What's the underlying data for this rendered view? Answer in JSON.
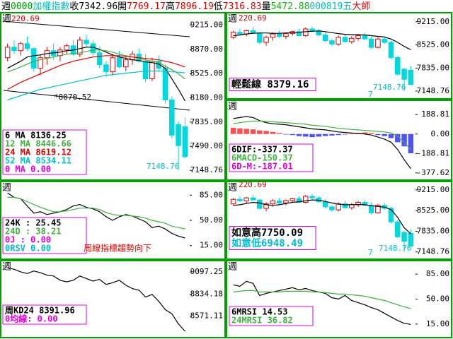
{
  "header": [
    {
      "text": "週",
      "color": "#000000"
    },
    {
      "text": "0000",
      "color": "#00a000"
    },
    {
      "text": "加權指數",
      "color": "#00c0c0"
    },
    {
      "text": "收",
      "color": "#000000"
    },
    {
      "text": "7342.96",
      "color": "#000000"
    },
    {
      "text": "開",
      "color": "#000000"
    },
    {
      "text": "7769.17",
      "color": "#e00000"
    },
    {
      "text": "高",
      "color": "#000000"
    },
    {
      "text": "7896.19",
      "color": "#e00000"
    },
    {
      "text": "低",
      "color": "#000000"
    },
    {
      "text": "7316.83",
      "color": "#e00000"
    },
    {
      "text": "量",
      "color": "#000000"
    },
    {
      "text": "5472.88",
      "color": "#00c000"
    },
    {
      "text": "000819五",
      "color": "#00c0c0"
    },
    {
      "text": "大師",
      "color": "#e00000"
    }
  ],
  "candles": {
    "up_color": "#e00000",
    "down_color": "#00d8e0",
    "open": [
      8750,
      8900,
      8850,
      8950,
      8880,
      8600,
      8750,
      8850,
      8780,
      8860,
      8920,
      8800,
      9000,
      8950,
      8820,
      8650,
      8550,
      8750,
      8620,
      8720,
      8800,
      8700,
      8450,
      8700,
      8600,
      8150,
      7800,
      7769.17
    ],
    "high": [
      8950,
      9000,
      8980,
      9050,
      8900,
      8800,
      8900,
      8950,
      8900,
      8950,
      9000,
      9050,
      9080,
      9000,
      8900,
      8700,
      8800,
      8850,
      8780,
      8850,
      8880,
      8800,
      8750,
      8780,
      8650,
      8200,
      7850,
      7896.19
    ],
    "low": [
      8700,
      8800,
      8780,
      8850,
      8550,
      8500,
      8650,
      8720,
      8700,
      8800,
      8780,
      8760,
      8900,
      8780,
      8600,
      8480,
      8500,
      8600,
      8560,
      8650,
      8680,
      8400,
      8420,
      8550,
      8100,
      7600,
      7148.76,
      7316.83
    ],
    "close": [
      8900,
      8850,
      8950,
      8880,
      8600,
      8750,
      8850,
      8780,
      8860,
      8920,
      8800,
      9000,
      8950,
      8820,
      8650,
      8550,
      8750,
      8620,
      8720,
      8800,
      8700,
      8450,
      8700,
      8600,
      8150,
      7650,
      7500,
      7342.96
    ]
  },
  "chart_data": [
    {
      "type": "candlestick",
      "corner": "週",
      "ylim": [
        7050,
        9350
      ],
      "yticks": [
        {
          "value": 9215,
          "label": "9215.00"
        },
        {
          "value": 8870,
          "label": "8870.00"
        },
        {
          "value": 8525,
          "label": "8525.00"
        },
        {
          "value": 8180,
          "label": "8180.00"
        },
        {
          "value": 7835,
          "label": "7835.00"
        },
        {
          "value": 7490,
          "label": "7490.00"
        },
        {
          "value": 7148.76,
          "label": "7148.76"
        }
      ],
      "series": [
        {
          "name": "6 MA 8136.25",
          "color": "#000000",
          "values": [
            8600,
            8650,
            8700,
            8760,
            8780,
            8790,
            8810,
            8820,
            8830,
            8850,
            8860,
            8880,
            8900,
            8900,
            8870,
            8830,
            8790,
            8760,
            8740,
            8720,
            8710,
            8690,
            8680,
            8660,
            8600,
            8450,
            8300,
            8136.25
          ]
        },
        {
          "name": "12 MA 8446.66",
          "color": "#40b040",
          "values": [
            8550,
            8580,
            8620,
            8660,
            8700,
            8720,
            8740,
            8760,
            8780,
            8800,
            8810,
            8820,
            8840,
            8860,
            8860,
            8850,
            8830,
            8800,
            8780,
            8760,
            8740,
            8720,
            8700,
            8680,
            8630,
            8580,
            8520,
            8446.66
          ]
        },
        {
          "name": "24 MA 8619.12",
          "color": "#e00000",
          "values": [
            8300,
            8350,
            8400,
            8440,
            8480,
            8520,
            8560,
            8600,
            8640,
            8670,
            8700,
            8720,
            8740,
            8760,
            8770,
            8780,
            8780,
            8780,
            8770,
            8760,
            8750,
            8740,
            8730,
            8720,
            8700,
            8680,
            8650,
            8619.12
          ]
        },
        {
          "name": "52 MA 8534.11",
          "color": "#00c0d0",
          "values": [
            8150,
            8180,
            8210,
            8240,
            8270,
            8300,
            8320,
            8340,
            8360,
            8380,
            8400,
            8420,
            8440,
            8460,
            8480,
            8500,
            8510,
            8520,
            8530,
            8540,
            8550,
            8560,
            8560,
            8560,
            8560,
            8550,
            8545,
            8534.11
          ]
        }
      ],
      "legend": [
        {
          "text": "0 MA 0.00",
          "color": "#e000e0"
        }
      ],
      "annotations": [
        {
          "text": "220.69",
          "color": "#e00000"
        },
        {
          "text": "*8070.52",
          "color": "#000000"
        },
        {
          "text": "7148.76",
          "color": "#00c0d0"
        }
      ]
    },
    {
      "type": "candlestick",
      "corner": "週",
      "ylim": [
        7000,
        9400
      ],
      "yticks": [
        {
          "value": 9215,
          "label": "9215.00"
        },
        {
          "value": 8525,
          "label": "8525.00"
        },
        {
          "value": 7835,
          "label": "7835.00"
        },
        {
          "value": 7148.76,
          "label": "7148.76"
        }
      ],
      "series": [
        {
          "name": "輕鬆線 8379.16",
          "color": "#000000",
          "values": [
            8800,
            8820,
            8850,
            8870,
            8880,
            8880,
            8870,
            8870,
            8880,
            8890,
            8900,
            8920,
            8930,
            8940,
            8920,
            8890,
            8860,
            8840,
            8830,
            8830,
            8820,
            8800,
            8780,
            8760,
            8700,
            8600,
            8480,
            8379.16
          ]
        }
      ],
      "legend": [],
      "annotations": [
        {
          "text": "220.69",
          "color": "#e00000"
        },
        {
          "text": "7148.76",
          "color": "#00c0d0"
        },
        {
          "text": "7",
          "color": "#00c0d0"
        }
      ]
    },
    {
      "type": "bar",
      "corner": "週",
      "ylim": [
        -420,
        300
      ],
      "yticks": [
        {
          "value": 188.81,
          "label": "188.81"
        },
        {
          "value": 0,
          "label": "0.00"
        },
        {
          "value": -188.81,
          "label": "-188.81"
        },
        {
          "value": -377.62,
          "label": "-377.62"
        }
      ],
      "bars": {
        "positive_color": "#ff5050",
        "negative_color": "#5050ff",
        "values": [
          60,
          55,
          50,
          45,
          35,
          30,
          20,
          10,
          -5,
          -10,
          -20,
          -25,
          -30,
          -25,
          -20,
          -15,
          -10,
          -5,
          5,
          10,
          15,
          10,
          -10,
          -20,
          -40,
          -80,
          -120,
          -187.01
        ]
      },
      "series": [
        {
          "name": "6DIF:-337.37",
          "color": "#000000",
          "values": [
            150,
            160,
            170,
            160,
            130,
            110,
            100,
            95,
            90,
            80,
            70,
            60,
            50,
            45,
            40,
            30,
            20,
            15,
            10,
            5,
            0,
            -10,
            -30,
            -50,
            -80,
            -150,
            -250,
            -337.37
          ]
        },
        {
          "name": "6MACD-150.37",
          "color": "#40b040",
          "values": [
            100,
            110,
            120,
            125,
            125,
            122,
            118,
            115,
            110,
            105,
            100,
            95,
            85,
            80,
            75,
            65,
            55,
            50,
            45,
            40,
            35,
            30,
            25,
            20,
            10,
            -20,
            -80,
            -150.37
          ]
        }
      ],
      "legend": [
        {
          "text": "6D-M:-187.01",
          "color": "#e000e0"
        }
      ],
      "annotations": []
    },
    {
      "type": "line",
      "corner": "週",
      "ylim": [
        0,
        100
      ],
      "yticks": [
        {
          "value": 85,
          "label": "85.00"
        },
        {
          "value": 50,
          "label": "50.00"
        },
        {
          "value": 15,
          "label": "15.00"
        }
      ],
      "series": [
        {
          "name": "24K : 25.45",
          "color": "#000000",
          "values": [
            88,
            82,
            80,
            70,
            60,
            62,
            58,
            60,
            62,
            65,
            70,
            72,
            68,
            66,
            62,
            55,
            50,
            55,
            58,
            56,
            52,
            48,
            40,
            42,
            38,
            32,
            28,
            25.45
          ]
        },
        {
          "name": "24D : 38.21",
          "color": "#40b040",
          "values": [
            82,
            82,
            80,
            76,
            72,
            68,
            65,
            62,
            62,
            63,
            65,
            67,
            67,
            67,
            65,
            61,
            58,
            57,
            57,
            56,
            55,
            53,
            50,
            48,
            46,
            42,
            40,
            38.21
          ]
        }
      ],
      "legend": [
        {
          "text": "0J : 0.00",
          "color": "#e000e0"
        },
        {
          "text": "0RSV 0.00",
          "color": "#00c0d0"
        }
      ],
      "annotations": [
        {
          "text": "周線指標趨勢向下",
          "color": "#e00000"
        }
      ]
    },
    {
      "type": "candlestick",
      "corner": "週",
      "ylim": [
        7000,
        9400
      ],
      "yticks": [
        {
          "value": 9215,
          "label": "9215.00"
        },
        {
          "value": 8525,
          "label": "8525.00"
        },
        {
          "value": 7835,
          "label": "7835.00"
        },
        {
          "value": 7148.76,
          "label": "7148.76"
        }
      ],
      "series": [
        {
          "name": "如意高7750.09",
          "color": "#000000",
          "values": [
            8700,
            8720,
            8760,
            8800,
            8780,
            8720,
            8700,
            8720,
            8760,
            8800,
            8820,
            8850,
            8880,
            8870,
            8830,
            8780,
            8740,
            8720,
            8720,
            8730,
            8720,
            8690,
            8660,
            8640,
            8560,
            8300,
            7950,
            7750.09
          ]
        }
      ],
      "legend": [
        {
          "text": "如意低6948.49",
          "color": "#00c0d0"
        }
      ],
      "annotations": [
        {
          "text": "220.69",
          "color": "#e00000"
        },
        {
          "text": "7148.76",
          "color": "#00c0d0"
        },
        {
          "text": "7",
          "color": "#00c0d0"
        }
      ]
    },
    {
      "type": "line",
      "corner": "週",
      "ylim": [
        8350,
        9200
      ],
      "yticks": [
        {
          "value": 9097.25,
          "label": "9097.25"
        },
        {
          "value": 8834.18,
          "label": "8834.18"
        },
        {
          "value": 8571.11,
          "label": "8571.11"
        }
      ],
      "series": [
        {
          "name": "周KD24 8391.96",
          "color": "#000000",
          "values": [
            9150,
            9130,
            9100,
            9080,
            9110,
            9090,
            9060,
            9050,
            9000,
            8980,
            9000,
            9050,
            9020,
            8990,
            9010,
            8950,
            8970,
            9000,
            8940,
            8900,
            8880,
            8800,
            8830,
            8750,
            8650,
            8600,
            8480,
            8391.96
          ]
        }
      ],
      "legend": [
        {
          "text": "0均線: 0.00",
          "color": "#e000e0"
        }
      ],
      "annotations": []
    },
    {
      "type": "line",
      "corner": "週",
      "ylim": [
        0,
        100
      ],
      "yticks": [
        {
          "value": 85,
          "label": "85.00"
        },
        {
          "value": 50,
          "label": "50.00"
        },
        {
          "value": 15,
          "label": "15.00"
        }
      ],
      "series": [
        {
          "name": "6MRSI 14.53",
          "color": "#000000",
          "values": [
            70,
            68,
            75,
            72,
            55,
            58,
            60,
            62,
            64,
            66,
            63,
            65,
            62,
            60,
            58,
            52,
            50,
            55,
            48,
            45,
            42,
            38,
            35,
            30,
            25,
            20,
            16,
            14.53
          ]
        },
        {
          "name": "24MRSI 36.82",
          "color": "#40b040",
          "values": [
            60,
            61,
            62,
            62,
            60,
            60,
            60,
            60,
            61,
            61,
            61,
            61,
            60,
            60,
            59,
            58,
            57,
            57,
            56,
            55,
            54,
            52,
            50,
            48,
            45,
            42,
            39,
            36.82
          ]
        }
      ],
      "legend": [],
      "annotations": []
    }
  ]
}
